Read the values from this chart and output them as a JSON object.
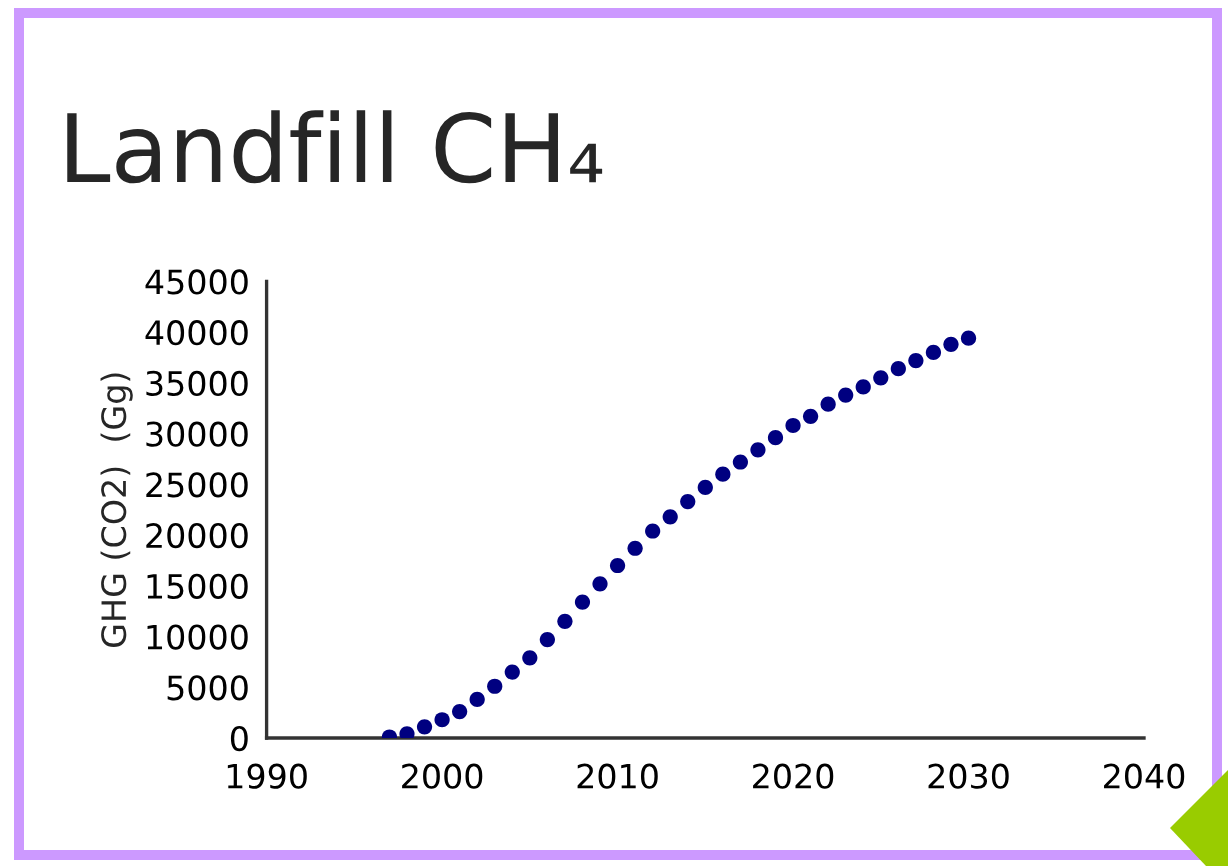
{
  "chart_data": {
    "type": "scatter",
    "title": "Landfill CH₄",
    "ylabel": "GHG (CO2)  (Gg)",
    "x": [
      1997,
      1998,
      1999,
      2000,
      2001,
      2002,
      2003,
      2004,
      2005,
      2006,
      2007,
      2008,
      2009,
      2010,
      2011,
      2012,
      2013,
      2014,
      2015,
      2016,
      2017,
      2018,
      2019,
      2020,
      2021,
      2022,
      2023,
      2024,
      2025,
      2026,
      2027,
      2028,
      2029,
      2030
    ],
    "series": [
      {
        "color": "#000080",
        "values": [
          100,
          400,
          1100,
          1800,
          2600,
          3800,
          5100,
          6500,
          7900,
          9700,
          11500,
          13400,
          15200,
          17000,
          18700,
          20400,
          21800,
          23300,
          24700,
          26000,
          27200,
          28400,
          29600,
          30800,
          31700,
          32900,
          33800,
          34600,
          35500,
          36400,
          37200,
          38000,
          38800,
          39400
        ]
      }
    ],
    "xlim": [
      1990,
      2040
    ],
    "xticks": [
      1990,
      2000,
      2010,
      2020,
      2030,
      2040
    ],
    "ylim": [
      0,
      45000
    ],
    "yticks": [
      0,
      5000,
      10000,
      15000,
      20000,
      25000,
      30000,
      35000,
      40000,
      45000
    ],
    "marker": "circle"
  }
}
